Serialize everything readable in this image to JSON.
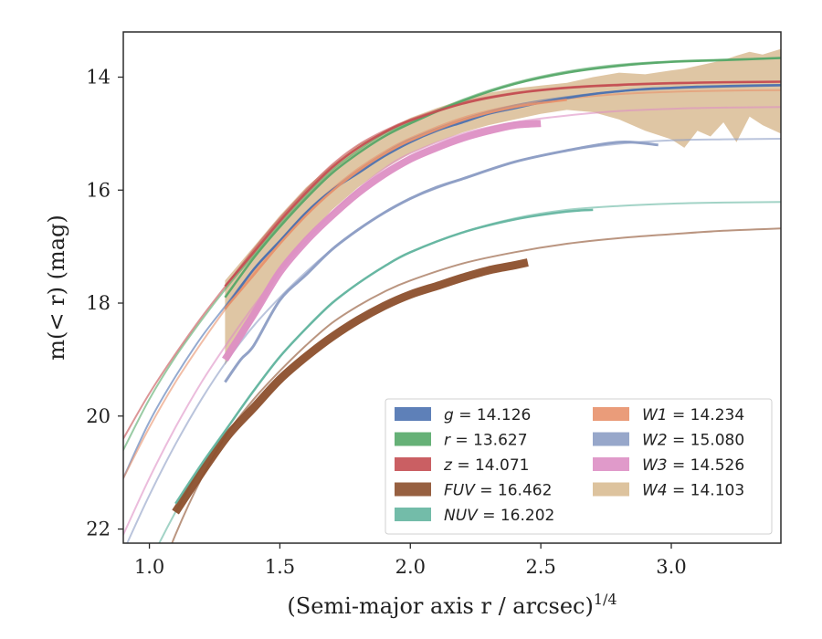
{
  "chart_data": {
    "type": "line",
    "title": "",
    "xlabel": "(Semi-major axis r / arcsec)",
    "xlabel_sup": "1/4",
    "ylabel": "m(< r) (mag)",
    "xlim": [
      0.9,
      3.42
    ],
    "ylim": [
      22.25,
      13.2
    ],
    "y_inverted": true,
    "x_ticks": [
      1.0,
      1.5,
      2.0,
      2.5,
      3.0
    ],
    "x_tick_labels": [
      "1.0",
      "1.5",
      "2.0",
      "2.5",
      "3.0"
    ],
    "y_ticks": [
      14,
      16,
      18,
      20,
      22
    ],
    "y_tick_labels": [
      "14",
      "16",
      "18",
      "20",
      "22"
    ],
    "grid": false,
    "legend_position": "lower-right",
    "series": [
      {
        "name": "g = 14.126",
        "label_var": "g",
        "label_val": "14.126",
        "color": "#4c72b0",
        "model_x": [
          0.9,
          1.0,
          1.1,
          1.2,
          1.3,
          1.4,
          1.5,
          1.6,
          1.7,
          1.8,
          1.9,
          2.0,
          2.2,
          2.4,
          2.6,
          2.8,
          3.0,
          3.2,
          3.42
        ],
        "model_y": [
          21.1,
          20.1,
          19.3,
          18.6,
          18.0,
          17.4,
          16.9,
          16.4,
          16.0,
          15.65,
          15.35,
          15.1,
          14.75,
          14.5,
          14.35,
          14.25,
          14.2,
          14.17,
          14.15
        ],
        "data_x": [
          1.29,
          1.4,
          1.5,
          1.6,
          1.7,
          1.8,
          1.9,
          2.0,
          2.1,
          2.2,
          2.3,
          2.4,
          2.5,
          2.6,
          2.7,
          2.8,
          2.9,
          3.0,
          3.1,
          3.2,
          3.3,
          3.42
        ],
        "data_y": [
          18.1,
          17.4,
          16.9,
          16.4,
          16.0,
          15.7,
          15.4,
          15.15,
          14.95,
          14.8,
          14.65,
          14.55,
          14.45,
          14.37,
          14.3,
          14.25,
          14.21,
          14.19,
          14.17,
          14.16,
          14.15,
          14.14
        ],
        "data_width": 2.5
      },
      {
        "name": "r = 13.627",
        "label_var": "r",
        "label_val": "13.627",
        "color": "#55a868",
        "model_x": [
          0.9,
          1.0,
          1.1,
          1.2,
          1.3,
          1.4,
          1.5,
          1.6,
          1.7,
          1.8,
          1.9,
          2.0,
          2.2,
          2.4,
          2.6,
          2.8,
          3.0,
          3.2,
          3.42
        ],
        "model_y": [
          20.6,
          19.7,
          18.95,
          18.3,
          17.7,
          17.15,
          16.6,
          16.1,
          15.65,
          15.3,
          15.0,
          14.8,
          14.4,
          14.1,
          13.9,
          13.78,
          13.72,
          13.69,
          13.66
        ],
        "data_x": [
          1.29,
          1.4,
          1.5,
          1.6,
          1.7,
          1.8,
          1.9,
          2.0,
          2.2,
          2.4,
          2.6,
          2.8,
          3.0,
          3.2,
          3.42
        ],
        "data_y": [
          17.9,
          17.2,
          16.65,
          16.15,
          15.7,
          15.35,
          15.05,
          14.82,
          14.42,
          14.12,
          13.92,
          13.8,
          13.73,
          13.7,
          13.66
        ],
        "data_width": 2.5
      },
      {
        "name": "z = 14.071",
        "label_var": "z",
        "label_val": "14.071",
        "color": "#c44e52",
        "model_x": [
          0.9,
          1.0,
          1.1,
          1.2,
          1.3,
          1.4,
          1.5,
          1.6,
          1.7,
          1.8,
          1.9,
          2.0,
          2.2,
          2.4,
          2.6,
          2.8,
          3.0,
          3.2,
          3.42
        ],
        "model_y": [
          20.4,
          19.6,
          18.9,
          18.25,
          17.65,
          17.05,
          16.5,
          16.0,
          15.55,
          15.2,
          14.95,
          14.75,
          14.45,
          14.28,
          14.18,
          14.13,
          14.1,
          14.09,
          14.08
        ],
        "data_x": [
          1.29,
          1.4,
          1.5,
          1.6,
          1.7,
          1.8,
          1.9,
          2.0,
          2.2,
          2.4,
          2.6,
          2.8,
          3.0,
          3.2,
          3.42
        ],
        "data_y": [
          17.7,
          17.1,
          16.55,
          16.05,
          15.6,
          15.25,
          14.98,
          14.77,
          14.47,
          14.29,
          14.19,
          14.14,
          14.11,
          14.09,
          14.08
        ],
        "data_width": 2.5
      },
      {
        "name": "FUV = 16.462",
        "label_var": "FUV",
        "label_val": "16.462",
        "color": "#8c4f2c",
        "model_x": [
          0.9,
          1.0,
          1.1,
          1.2,
          1.3,
          1.4,
          1.5,
          1.6,
          1.7,
          1.8,
          1.9,
          2.0,
          2.2,
          2.4,
          2.6,
          2.8,
          3.0,
          3.2,
          3.42
        ],
        "model_y": [
          24.5,
          23.3,
          22.1,
          21.1,
          20.3,
          19.7,
          19.2,
          18.75,
          18.35,
          18.05,
          17.8,
          17.6,
          17.3,
          17.1,
          16.95,
          16.85,
          16.78,
          16.72,
          16.68
        ],
        "data_x": [
          1.1,
          1.2,
          1.3,
          1.4,
          1.5,
          1.6,
          1.7,
          1.8,
          1.9,
          2.0,
          2.1,
          2.2,
          2.3,
          2.4,
          2.45
        ],
        "data_y": [
          21.7,
          21.0,
          20.35,
          19.85,
          19.35,
          18.95,
          18.6,
          18.3,
          18.05,
          17.85,
          17.7,
          17.55,
          17.42,
          17.33,
          17.28
        ],
        "data_width": 9
      },
      {
        "name": "NUV = 16.202",
        "label_var": "NUV",
        "label_val": "16.202",
        "color": "#64b5a0",
        "model_x": [
          0.9,
          1.0,
          1.1,
          1.2,
          1.3,
          1.4,
          1.5,
          1.6,
          1.7,
          1.8,
          1.9,
          2.0,
          2.2,
          2.4,
          2.6,
          2.8,
          3.0,
          3.2,
          3.42
        ],
        "model_y": [
          23.6,
          22.6,
          21.7,
          20.9,
          20.2,
          19.55,
          18.95,
          18.45,
          18.0,
          17.65,
          17.35,
          17.1,
          16.75,
          16.5,
          16.35,
          16.28,
          16.24,
          16.22,
          16.21
        ],
        "data_x": [
          1.1,
          1.2,
          1.3,
          1.4,
          1.5,
          1.6,
          1.7,
          1.8,
          1.9,
          2.0,
          2.2,
          2.4,
          2.6,
          2.7
        ],
        "data_y": [
          21.55,
          20.85,
          20.2,
          19.55,
          18.95,
          18.45,
          18.0,
          17.65,
          17.35,
          17.1,
          16.75,
          16.52,
          16.38,
          16.35
        ],
        "data_width": 2.5
      },
      {
        "name": "W1 = 14.234",
        "label_var": "W1",
        "label_val": "14.234",
        "color": "#e8916b",
        "model_x": [
          0.9,
          1.0,
          1.1,
          1.2,
          1.3,
          1.4,
          1.5,
          1.6,
          1.7,
          1.8,
          1.9,
          2.0,
          2.2,
          2.4,
          2.6,
          2.8,
          3.0,
          3.2,
          3.42
        ],
        "model_y": [
          21.1,
          20.2,
          19.4,
          18.7,
          18.05,
          17.45,
          16.9,
          16.4,
          15.98,
          15.62,
          15.32,
          15.08,
          14.72,
          14.5,
          14.38,
          14.3,
          14.26,
          14.24,
          14.23
        ],
        "data_x": [
          1.29,
          1.4,
          1.5,
          1.6,
          1.7,
          1.8,
          1.9,
          2.0,
          2.2,
          2.4,
          2.6
        ],
        "data_y": [
          18.1,
          17.5,
          16.95,
          16.45,
          16.02,
          15.66,
          15.36,
          15.12,
          14.76,
          14.53,
          14.4
        ],
        "data_width": 2.5
      },
      {
        "name": "W2 = 15.080",
        "label_var": "W2",
        "label_val": "15.080",
        "color": "#8c9dc4",
        "model_x": [
          0.9,
          1.0,
          1.1,
          1.2,
          1.3,
          1.4,
          1.5,
          1.6,
          1.7,
          1.8,
          1.9,
          2.0,
          2.2,
          2.4,
          2.6,
          2.8,
          3.0,
          3.2,
          3.42
        ],
        "model_y": [
          22.4,
          21.4,
          20.5,
          19.7,
          19.0,
          18.4,
          17.9,
          17.45,
          17.05,
          16.7,
          16.4,
          16.15,
          15.8,
          15.5,
          15.3,
          15.18,
          15.12,
          15.1,
          15.09
        ],
        "data_x": [
          1.29,
          1.35,
          1.4,
          1.5,
          1.6,
          1.7,
          1.8,
          1.9,
          2.0,
          2.1,
          2.2,
          2.4,
          2.6,
          2.8,
          2.95
        ],
        "data_y": [
          19.4,
          19.0,
          18.75,
          17.95,
          17.5,
          17.05,
          16.7,
          16.4,
          16.15,
          15.95,
          15.8,
          15.5,
          15.3,
          15.15,
          15.2
        ],
        "data_width": 3
      },
      {
        "name": "W3 = 14.526",
        "label_var": "W3",
        "label_val": "14.526",
        "color": "#dd8fc4",
        "model_x": [
          0.9,
          1.0,
          1.1,
          1.2,
          1.3,
          1.4,
          1.5,
          1.6,
          1.7,
          1.8,
          1.9,
          2.0,
          2.2,
          2.4,
          2.6,
          2.8,
          3.0,
          3.2,
          3.42
        ],
        "model_y": [
          22.1,
          21.1,
          20.2,
          19.4,
          18.7,
          18.05,
          17.45,
          16.9,
          16.4,
          15.98,
          15.62,
          15.35,
          15.0,
          14.8,
          14.68,
          14.6,
          14.56,
          14.54,
          14.53
        ],
        "data_x": [
          1.29,
          1.4,
          1.5,
          1.6,
          1.7,
          1.8,
          1.9,
          2.0,
          2.1,
          2.2,
          2.3,
          2.4,
          2.5
        ],
        "data_y": [
          19.0,
          18.2,
          17.45,
          16.9,
          16.45,
          16.05,
          15.72,
          15.45,
          15.25,
          15.08,
          14.95,
          14.85,
          14.82
        ],
        "data_width": 8
      },
      {
        "name": "W4 = 14.103",
        "label_var": "W4",
        "label_val": "14.103",
        "color": "#d9bc94",
        "band_x": [
          1.29,
          1.4,
          1.5,
          1.6,
          1.7,
          1.8,
          1.9,
          2.0,
          2.1,
          2.2,
          2.3,
          2.4,
          2.5,
          2.6,
          2.7,
          2.8,
          2.9,
          3.0,
          3.05,
          3.1,
          3.15,
          3.2,
          3.25,
          3.3,
          3.35,
          3.42
        ],
        "band_upper": [
          17.6,
          17.0,
          16.45,
          15.95,
          15.55,
          15.2,
          14.95,
          14.72,
          14.55,
          14.4,
          14.28,
          14.2,
          14.15,
          14.1,
          14.0,
          13.92,
          13.95,
          13.88,
          13.85,
          13.8,
          13.75,
          13.7,
          13.62,
          13.55,
          13.6,
          13.5
        ],
        "band_lower": [
          19.1,
          18.3,
          17.45,
          16.85,
          16.35,
          15.95,
          15.62,
          15.35,
          15.15,
          14.98,
          14.85,
          14.75,
          14.65,
          14.58,
          14.62,
          14.75,
          14.95,
          15.1,
          15.25,
          14.95,
          15.05,
          14.8,
          15.15,
          14.7,
          14.85,
          15.0
        ]
      }
    ]
  }
}
